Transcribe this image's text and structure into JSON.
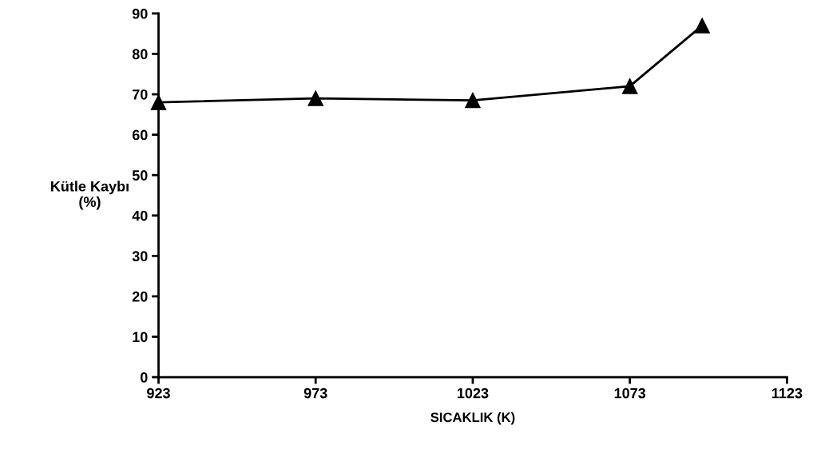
{
  "chart_data": {
    "type": "line",
    "xlabel": "SICAKLIK (K)",
    "ylabel": "Kütle Kaybı\n(%)",
    "x": [
      923,
      973,
      1023,
      1073,
      1096
    ],
    "series": [
      {
        "color": "#000000",
        "values": [
          68,
          69,
          68.5,
          72,
          87
        ]
      }
    ],
    "xlim": [
      923,
      1123
    ],
    "xticks": [
      923,
      973,
      1023,
      1073,
      1123
    ],
    "ylim": [
      0,
      90
    ],
    "yticks": [
      0,
      10,
      20,
      30,
      40,
      50,
      60,
      70,
      80,
      90
    ],
    "grid": false,
    "legend": false,
    "marker": "triangle",
    "line_style": "solid"
  }
}
